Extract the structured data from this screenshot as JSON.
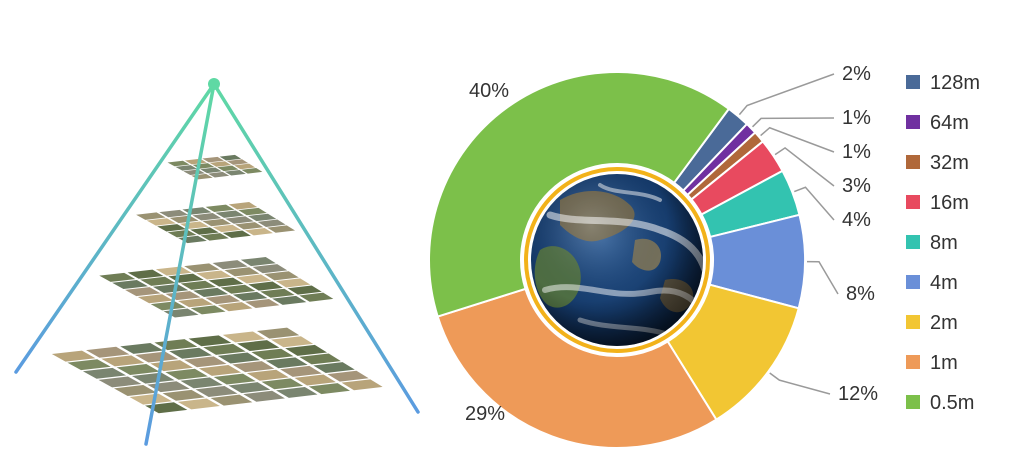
{
  "chart_data": {
    "type": "pie",
    "variant": "donut",
    "title": "",
    "legend_position": "right",
    "center_image": "earth-globe",
    "slices": [
      {
        "label": "128m",
        "value": 2,
        "display": "2%",
        "color": "#4a6a98"
      },
      {
        "label": "64m",
        "value": 1,
        "display": "1%",
        "color": "#7030a0"
      },
      {
        "label": "32m",
        "value": 1,
        "display": "1%",
        "color": "#b0683a"
      },
      {
        "label": "16m",
        "value": 3,
        "display": "3%",
        "color": "#e84a5f"
      },
      {
        "label": "8m",
        "value": 4,
        "display": "4%",
        "color": "#33c3b0"
      },
      {
        "label": "4m",
        "value": 8,
        "display": "8%",
        "color": "#6a8fd8"
      },
      {
        "label": "2m",
        "value": 12,
        "display": "12%",
        "color": "#f2c633"
      },
      {
        "label": "1m",
        "value": 29,
        "display": "29%",
        "color": "#ee9a58"
      },
      {
        "label": "0.5m",
        "value": 40,
        "display": "40%",
        "color": "#7cc04a"
      }
    ]
  },
  "illustration": {
    "type": "image-pyramid",
    "levels": 4,
    "edge_colors": [
      "#5fd9a4",
      "#5b9be0"
    ],
    "apex_color": "#5fd9a4"
  }
}
